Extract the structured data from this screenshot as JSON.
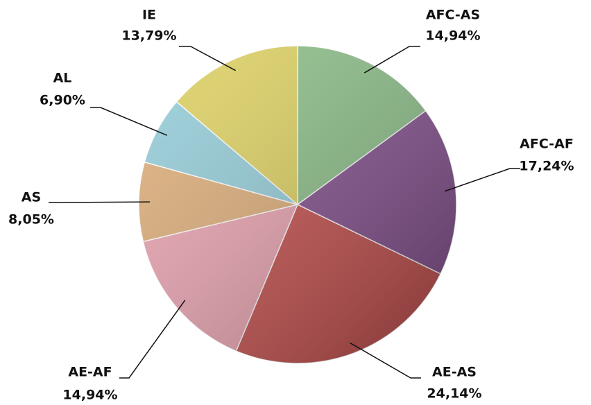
{
  "chart_data": {
    "type": "pie",
    "categories": [
      "AFC-AS",
      "AFC-AF",
      "AE-AS",
      "AE-AF",
      "AS",
      "AL",
      "IE"
    ],
    "values": [
      14.94,
      17.24,
      24.14,
      14.94,
      8.05,
      6.9,
      13.79
    ],
    "value_labels": [
      "14,94%",
      "17,24%",
      "24,14%",
      "14,94%",
      "8,05%",
      "6,90%",
      "13,79%"
    ],
    "colors": [
      "#8cbf88",
      "#844f8e",
      "#c6504e",
      "#eaa3b0",
      "#ddad78",
      "#93ccd8",
      "#ddd060"
    ]
  }
}
